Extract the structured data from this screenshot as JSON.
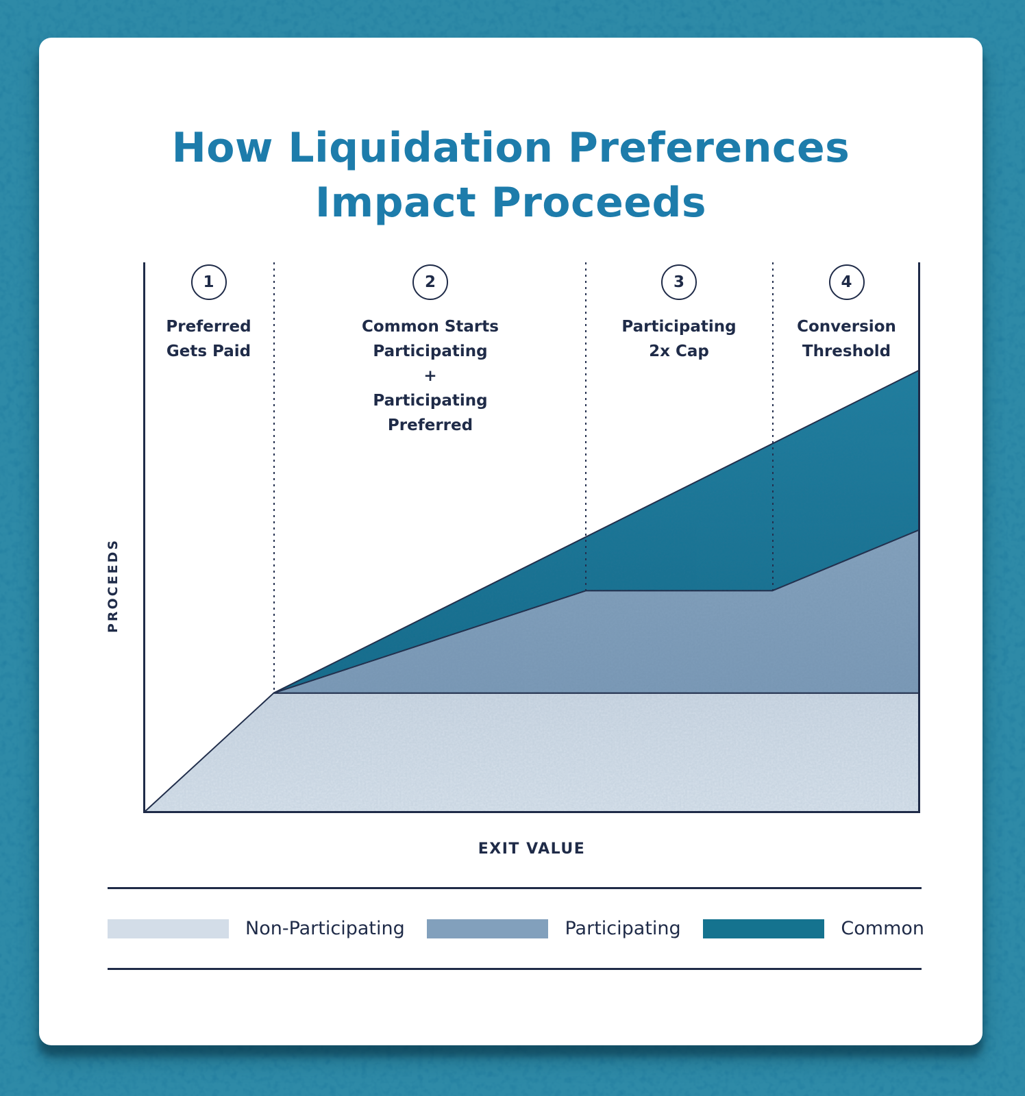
{
  "title": {
    "line1": "How Liquidation Preferences",
    "line2": "Impact Proceeds"
  },
  "chart": {
    "y_axis_label": "PROCEEDS",
    "x_axis_label": "EXIT VALUE",
    "phases": [
      {
        "number": "1",
        "lines": [
          "Preferred",
          "Gets Paid"
        ]
      },
      {
        "number": "2",
        "lines": [
          "Common Starts",
          "Participating",
          "+",
          "Participating",
          "Preferred"
        ]
      },
      {
        "number": "3",
        "lines": [
          "Participating",
          "2x Cap"
        ]
      },
      {
        "number": "4",
        "lines": [
          "Conversion",
          "Threshold"
        ]
      }
    ]
  },
  "legend": {
    "items": [
      {
        "label": "Non-Participating",
        "color": "#d3dde8"
      },
      {
        "label": "Participating",
        "color": "#82a0bc"
      },
      {
        "label": "Common",
        "color": "#15738f"
      }
    ]
  },
  "colors": {
    "background_frame": "#1e7a9e",
    "card": "#ffffff",
    "title_text": "#1d7cab",
    "navy_text_and_lines": "#1f2b48",
    "area_non_participating_top": "#d3dde8",
    "area_non_participating_bottom": "#dde6ef",
    "area_participating_top": "#87a4bf",
    "area_participating_bottom": "#7e9cb9",
    "area_common_top": "#1d7fa0",
    "area_common_bottom": "#116c8c"
  },
  "chart_data": {
    "type": "area",
    "title": "How Liquidation Preferences Impact Proceeds",
    "xlabel": "EXIT VALUE",
    "ylabel": "PROCEEDS",
    "axes_numeric": false,
    "x_range": [
      0,
      1
    ],
    "y_range": [
      0,
      1
    ],
    "grid": false,
    "legend_position": "bottom",
    "note": "Conceptual stacked-area chart; no numeric ticks shown. Coordinates are normalized fractions of the axes read from the figure geometry.",
    "series": [
      {
        "name": "Non-Participating",
        "top_edge": [
          [
            0,
            0
          ],
          [
            0.168,
            0.218
          ],
          [
            1,
            0.218
          ]
        ]
      },
      {
        "name": "Participating",
        "top_edge": [
          [
            0.168,
            0.218
          ],
          [
            0.57,
            0.404
          ],
          [
            0.81,
            0.404
          ],
          [
            1,
            0.515
          ]
        ]
      },
      {
        "name": "Common",
        "top_edge": [
          [
            0.168,
            0.218
          ],
          [
            1,
            0.805
          ]
        ]
      }
    ],
    "phase_boundaries_x": [
      0.168,
      0.57,
      0.81
    ],
    "annotations": [
      {
        "phase": 1,
        "x_span": [
          0,
          0.168
        ],
        "label": "Preferred Gets Paid"
      },
      {
        "phase": 2,
        "x_span": [
          0.168,
          0.57
        ],
        "label": "Common Starts Participating + Participating Preferred"
      },
      {
        "phase": 3,
        "x_span": [
          0.57,
          0.81
        ],
        "label": "Participating 2x Cap"
      },
      {
        "phase": 4,
        "x_span": [
          0.81,
          1
        ],
        "label": "Conversion Threshold"
      }
    ]
  }
}
